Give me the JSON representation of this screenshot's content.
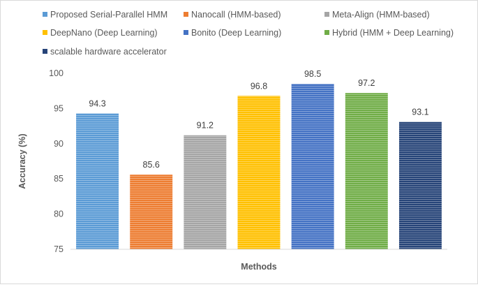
{
  "chart_data": {
    "type": "bar",
    "categories": [
      "Proposed Serial-Parallel HMM",
      "Nanocall (HMM-based)",
      "Meta-Align (HMM-based)",
      "DeepNano (Deep Learning)",
      "Bonito (Deep Learning)",
      "Hybrid (HMM + Deep Learning)",
      "scalable hardware accelerator"
    ],
    "values": [
      94.3,
      85.6,
      91.2,
      96.8,
      98.5,
      97.2,
      93.1
    ],
    "data_labels": [
      "94.3",
      "85.6",
      "91.2",
      "96.8",
      "98.5",
      "97.2",
      "93.1"
    ],
    "colors": [
      "#5b9bd5",
      "#ed7d31",
      "#a5a5a5",
      "#ffc000",
      "#4472c4",
      "#70ad47",
      "#264478"
    ],
    "title": "",
    "xlabel": "Methods",
    "ylabel": "Accuracy (%)",
    "ylim": [
      75,
      100
    ],
    "yticks": [
      "75",
      "80",
      "85",
      "90",
      "95",
      "100"
    ],
    "grid": false,
    "legend_position": "top"
  }
}
